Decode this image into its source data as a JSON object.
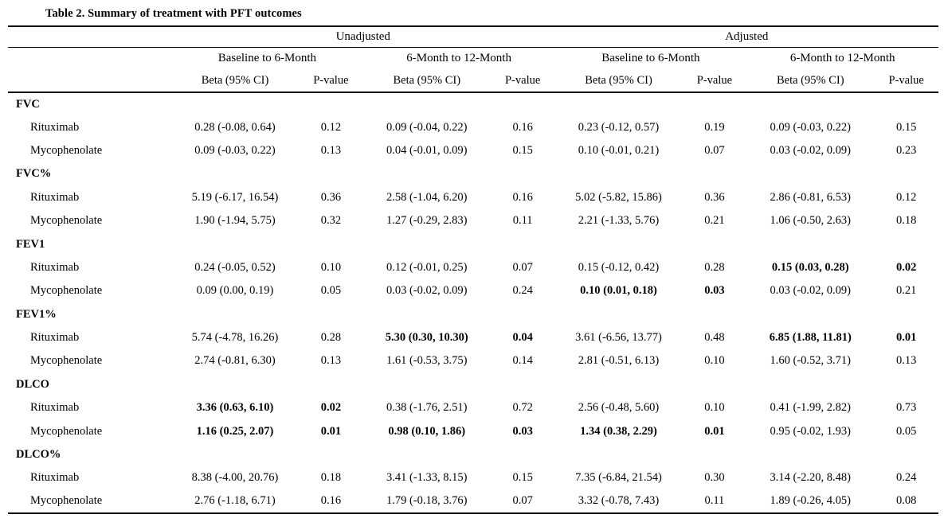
{
  "title": "Table 2. Summary of treatment with PFT outcomes",
  "table": {
    "spanners": [
      "Unadjusted",
      "Adjusted"
    ],
    "periods": [
      "Baseline to 6-Month",
      "6-Month to 12-Month",
      "Baseline to 6-Month",
      "6-Month to 12-Month"
    ],
    "columns": [
      "Beta (95% CI)",
      "P-value",
      "Beta (95% CI)",
      "P-value",
      "Beta (95% CI)",
      "P-value",
      "Beta (95% CI)",
      "P-value"
    ],
    "groups": [
      {
        "name": "FVC",
        "rows": [
          {
            "label": "Rituximab",
            "cells": [
              {
                "t": "0.28 (-0.08, 0.64)",
                "b": false
              },
              {
                "t": "0.12",
                "b": false
              },
              {
                "t": "0.09 (-0.04, 0.22)",
                "b": false
              },
              {
                "t": "0.16",
                "b": false
              },
              {
                "t": "0.23 (-0.12, 0.57)",
                "b": false
              },
              {
                "t": "0.19",
                "b": false
              },
              {
                "t": "0.09 (-0.03, 0.22)",
                "b": false
              },
              {
                "t": "0.15",
                "b": false
              }
            ]
          },
          {
            "label": "Mycophenolate",
            "cells": [
              {
                "t": "0.09 (-0.03, 0.22)",
                "b": false
              },
              {
                "t": "0.13",
                "b": false
              },
              {
                "t": "0.04 (-0.01, 0.09)",
                "b": false
              },
              {
                "t": "0.15",
                "b": false
              },
              {
                "t": "0.10 (-0.01, 0.21)",
                "b": false
              },
              {
                "t": "0.07",
                "b": false
              },
              {
                "t": "0.03 (-0.02, 0.09)",
                "b": false
              },
              {
                "t": "0.23",
                "b": false
              }
            ]
          }
        ]
      },
      {
        "name": "FVC%",
        "rows": [
          {
            "label": "Rituximab",
            "cells": [
              {
                "t": "5.19 (-6.17, 16.54)",
                "b": false
              },
              {
                "t": "0.36",
                "b": false
              },
              {
                "t": "2.58 (-1.04, 6.20)",
                "b": false
              },
              {
                "t": "0.16",
                "b": false
              },
              {
                "t": "5.02 (-5.82, 15.86)",
                "b": false
              },
              {
                "t": "0.36",
                "b": false
              },
              {
                "t": "2.86 (-0.81, 6.53)",
                "b": false
              },
              {
                "t": "0.12",
                "b": false
              }
            ]
          },
          {
            "label": "Mycophenolate",
            "cells": [
              {
                "t": "1.90 (-1.94, 5.75)",
                "b": false
              },
              {
                "t": "0.32",
                "b": false
              },
              {
                "t": "1.27 (-0.29, 2.83)",
                "b": false
              },
              {
                "t": "0.11",
                "b": false
              },
              {
                "t": "2.21 (-1.33, 5.76)",
                "b": false
              },
              {
                "t": "0.21",
                "b": false
              },
              {
                "t": "1.06 (-0.50, 2.63)",
                "b": false
              },
              {
                "t": "0.18",
                "b": false
              }
            ]
          }
        ]
      },
      {
        "name": "FEV1",
        "rows": [
          {
            "label": "Rituximab",
            "cells": [
              {
                "t": "0.24 (-0.05, 0.52)",
                "b": false
              },
              {
                "t": "0.10",
                "b": false
              },
              {
                "t": "0.12 (-0.01, 0.25)",
                "b": false
              },
              {
                "t": "0.07",
                "b": false
              },
              {
                "t": "0.15 (-0.12, 0.42)",
                "b": false
              },
              {
                "t": "0.28",
                "b": false
              },
              {
                "t": "0.15 (0.03, 0.28)",
                "b": true
              },
              {
                "t": "0.02",
                "b": true
              }
            ]
          },
          {
            "label": "Mycophenolate",
            "cells": [
              {
                "t": "0.09 (0.00, 0.19)",
                "b": false
              },
              {
                "t": "0.05",
                "b": false
              },
              {
                "t": "0.03 (-0.02, 0.09)",
                "b": false
              },
              {
                "t": "0.24",
                "b": false
              },
              {
                "t": "0.10 (0.01, 0.18)",
                "b": true
              },
              {
                "t": "0.03",
                "b": true
              },
              {
                "t": "0.03 (-0.02, 0.09)",
                "b": false
              },
              {
                "t": "0.21",
                "b": false
              }
            ]
          }
        ]
      },
      {
        "name": "FEV1%",
        "rows": [
          {
            "label": "Rituximab",
            "cells": [
              {
                "t": "5.74 (-4.78, 16.26)",
                "b": false
              },
              {
                "t": "0.28",
                "b": false
              },
              {
                "t": "5.30 (0.30, 10.30)",
                "b": true
              },
              {
                "t": "0.04",
                "b": true
              },
              {
                "t": "3.61 (-6.56, 13.77)",
                "b": false
              },
              {
                "t": "0.48",
                "b": false
              },
              {
                "t": "6.85 (1.88, 11.81)",
                "b": true
              },
              {
                "t": "0.01",
                "b": true
              }
            ]
          },
          {
            "label": "Mycophenolate",
            "cells": [
              {
                "t": "2.74 (-0.81, 6.30)",
                "b": false
              },
              {
                "t": "0.13",
                "b": false
              },
              {
                "t": "1.61 (-0.53, 3.75)",
                "b": false
              },
              {
                "t": "0.14",
                "b": false
              },
              {
                "t": "2.81 (-0.51, 6.13)",
                "b": false
              },
              {
                "t": "0.10",
                "b": false
              },
              {
                "t": "1.60 (-0.52, 3.71)",
                "b": false
              },
              {
                "t": "0.13",
                "b": false
              }
            ]
          }
        ]
      },
      {
        "name": "DLCO",
        "rows": [
          {
            "label": "Rituximab",
            "cells": [
              {
                "t": "3.36 (0.63, 6.10)",
                "b": true
              },
              {
                "t": "0.02",
                "b": true
              },
              {
                "t": "0.38 (-1.76, 2.51)",
                "b": false
              },
              {
                "t": "0.72",
                "b": false
              },
              {
                "t": "2.56 (-0.48, 5.60)",
                "b": false
              },
              {
                "t": "0.10",
                "b": false
              },
              {
                "t": "0.41 (-1.99, 2.82)",
                "b": false
              },
              {
                "t": "0.73",
                "b": false
              }
            ]
          },
          {
            "label": "Mycophenolate",
            "cells": [
              {
                "t": "1.16 (0.25, 2.07)",
                "b": true
              },
              {
                "t": "0.01",
                "b": true
              },
              {
                "t": "0.98 (0.10, 1.86)",
                "b": true
              },
              {
                "t": "0.03",
                "b": true
              },
              {
                "t": "1.34 (0.38, 2.29)",
                "b": true
              },
              {
                "t": "0.01",
                "b": true
              },
              {
                "t": "0.95 (-0.02, 1.93)",
                "b": false
              },
              {
                "t": "0.05",
                "b": false
              }
            ]
          }
        ]
      },
      {
        "name": "DLCO%",
        "rows": [
          {
            "label": "Rituximab",
            "cells": [
              {
                "t": "8.38 (-4.00, 20.76)",
                "b": false
              },
              {
                "t": "0.18",
                "b": false
              },
              {
                "t": "3.41 (-1.33, 8.15)",
                "b": false
              },
              {
                "t": "0.15",
                "b": false
              },
              {
                "t": "7.35 (-6.84, 21.54)",
                "b": false
              },
              {
                "t": "0.30",
                "b": false
              },
              {
                "t": "3.14 (-2.20, 8.48)",
                "b": false
              },
              {
                "t": "0.24",
                "b": false
              }
            ]
          },
          {
            "label": "Mycophenolate",
            "cells": [
              {
                "t": "2.76 (-1.18, 6.71)",
                "b": false
              },
              {
                "t": "0.16",
                "b": false
              },
              {
                "t": "1.79 (-0.18, 3.76)",
                "b": false
              },
              {
                "t": "0.07",
                "b": false
              },
              {
                "t": "3.32 (-0.78, 7.43)",
                "b": false
              },
              {
                "t": "0.11",
                "b": false
              },
              {
                "t": "1.89 (-0.26, 4.05)",
                "b": false
              },
              {
                "t": "0.08",
                "b": false
              }
            ]
          }
        ]
      }
    ]
  }
}
